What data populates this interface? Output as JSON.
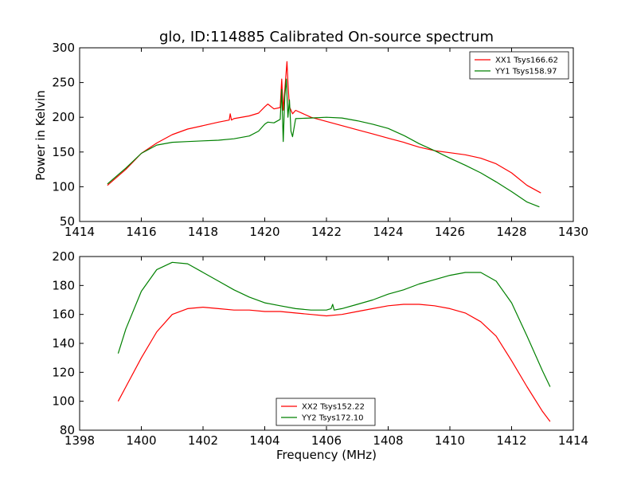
{
  "chart_data": [
    {
      "type": "line",
      "title": "glo, ID:114885 Calibrated On-source spectrum",
      "xlabel": "",
      "ylabel": "Power in Kelvin",
      "xlim": [
        1414,
        1430
      ],
      "ylim": [
        50,
        300
      ],
      "xticks": [
        1414,
        1416,
        1418,
        1420,
        1422,
        1424,
        1426,
        1428,
        1430
      ],
      "yticks": [
        50,
        100,
        150,
        200,
        250,
        300
      ],
      "grid": false,
      "legend_position": "top-right",
      "series": [
        {
          "name": "XX1 Tsys166.62",
          "color": "#ff0000",
          "x": [
            1414.9,
            1415.5,
            1416.0,
            1416.5,
            1417.0,
            1417.5,
            1418.0,
            1418.5,
            1418.85,
            1418.88,
            1418.92,
            1419.0,
            1419.5,
            1419.8,
            1420.0,
            1420.1,
            1420.3,
            1420.5,
            1420.55,
            1420.6,
            1420.65,
            1420.72,
            1420.75,
            1420.8,
            1420.9,
            1421.0,
            1421.5,
            1422.0,
            1422.5,
            1423.0,
            1423.5,
            1424.0,
            1424.5,
            1425.0,
            1425.5,
            1426.0,
            1426.5,
            1427.0,
            1427.5,
            1428.0,
            1428.5,
            1428.95
          ],
          "y": [
            102,
            125,
            148,
            163,
            175,
            183,
            188,
            193,
            196,
            205,
            196,
            198,
            202,
            206,
            215,
            219,
            212,
            214,
            255,
            210,
            240,
            280,
            250,
            215,
            205,
            210,
            200,
            194,
            188,
            182,
            176,
            170,
            164,
            157,
            152,
            149,
            146,
            141,
            133,
            120,
            102,
            91
          ]
        },
        {
          "name": "YY1 Tsys158.97",
          "color": "#008000",
          "x": [
            1414.9,
            1415.5,
            1416.0,
            1416.5,
            1417.0,
            1417.5,
            1418.0,
            1418.5,
            1419.0,
            1419.5,
            1419.8,
            1420.0,
            1420.1,
            1420.3,
            1420.5,
            1420.55,
            1420.6,
            1420.65,
            1420.7,
            1420.75,
            1420.8,
            1420.85,
            1420.9,
            1421.0,
            1421.5,
            1422.0,
            1422.5,
            1423.0,
            1423.5,
            1424.0,
            1424.5,
            1425.0,
            1425.5,
            1426.0,
            1426.5,
            1427.0,
            1427.5,
            1428.0,
            1428.5,
            1428.9
          ],
          "y": [
            104,
            127,
            148,
            160,
            164,
            165,
            166,
            167,
            169,
            173,
            180,
            190,
            193,
            192,
            197,
            240,
            165,
            230,
            255,
            200,
            225,
            180,
            172,
            198,
            199,
            200,
            199,
            195,
            190,
            184,
            174,
            162,
            152,
            141,
            131,
            120,
            107,
            93,
            78,
            71
          ]
        }
      ]
    },
    {
      "type": "line",
      "title": "",
      "xlabel": "Frequency (MHz)",
      "ylabel": "",
      "xlim": [
        1398,
        1414
      ],
      "ylim": [
        80,
        200
      ],
      "xticks": [
        1398,
        1400,
        1402,
        1404,
        1406,
        1408,
        1410,
        1412,
        1414
      ],
      "yticks": [
        80,
        100,
        120,
        140,
        160,
        180,
        200
      ],
      "grid": false,
      "legend_position": "bottom-center",
      "series": [
        {
          "name": "XX2 Tsys152.22",
          "color": "#ff0000",
          "x": [
            1399.25,
            1399.5,
            1400.0,
            1400.5,
            1401.0,
            1401.5,
            1402.0,
            1402.5,
            1403.0,
            1403.5,
            1404.0,
            1404.5,
            1405.0,
            1405.5,
            1406.0,
            1406.5,
            1407.0,
            1407.5,
            1408.0,
            1408.5,
            1409.0,
            1409.5,
            1410.0,
            1410.5,
            1411.0,
            1411.5,
            1412.0,
            1412.5,
            1413.0,
            1413.25
          ],
          "y": [
            100,
            110,
            130,
            148,
            160,
            164,
            165,
            164,
            163,
            163,
            162,
            162,
            161,
            160,
            159,
            160,
            162,
            164,
            166,
            167,
            167,
            166,
            164,
            161,
            155,
            145,
            128,
            110,
            93,
            86
          ]
        },
        {
          "name": "YY2 Tsys172.10",
          "color": "#008000",
          "x": [
            1399.25,
            1399.5,
            1400.0,
            1400.5,
            1401.0,
            1401.5,
            1402.0,
            1402.5,
            1403.0,
            1403.5,
            1404.0,
            1404.5,
            1405.0,
            1405.5,
            1406.0,
            1406.15,
            1406.2,
            1406.25,
            1406.5,
            1407.0,
            1407.5,
            1408.0,
            1408.5,
            1409.0,
            1409.5,
            1410.0,
            1410.5,
            1411.0,
            1411.5,
            1412.0,
            1412.5,
            1413.0,
            1413.25
          ],
          "y": [
            133,
            150,
            176,
            191,
            196,
            195,
            189,
            183,
            177,
            172,
            168,
            166,
            164,
            163,
            163,
            164,
            167,
            163,
            164,
            167,
            170,
            174,
            177,
            181,
            184,
            187,
            189,
            189,
            183,
            168,
            145,
            121,
            110
          ]
        }
      ]
    }
  ]
}
